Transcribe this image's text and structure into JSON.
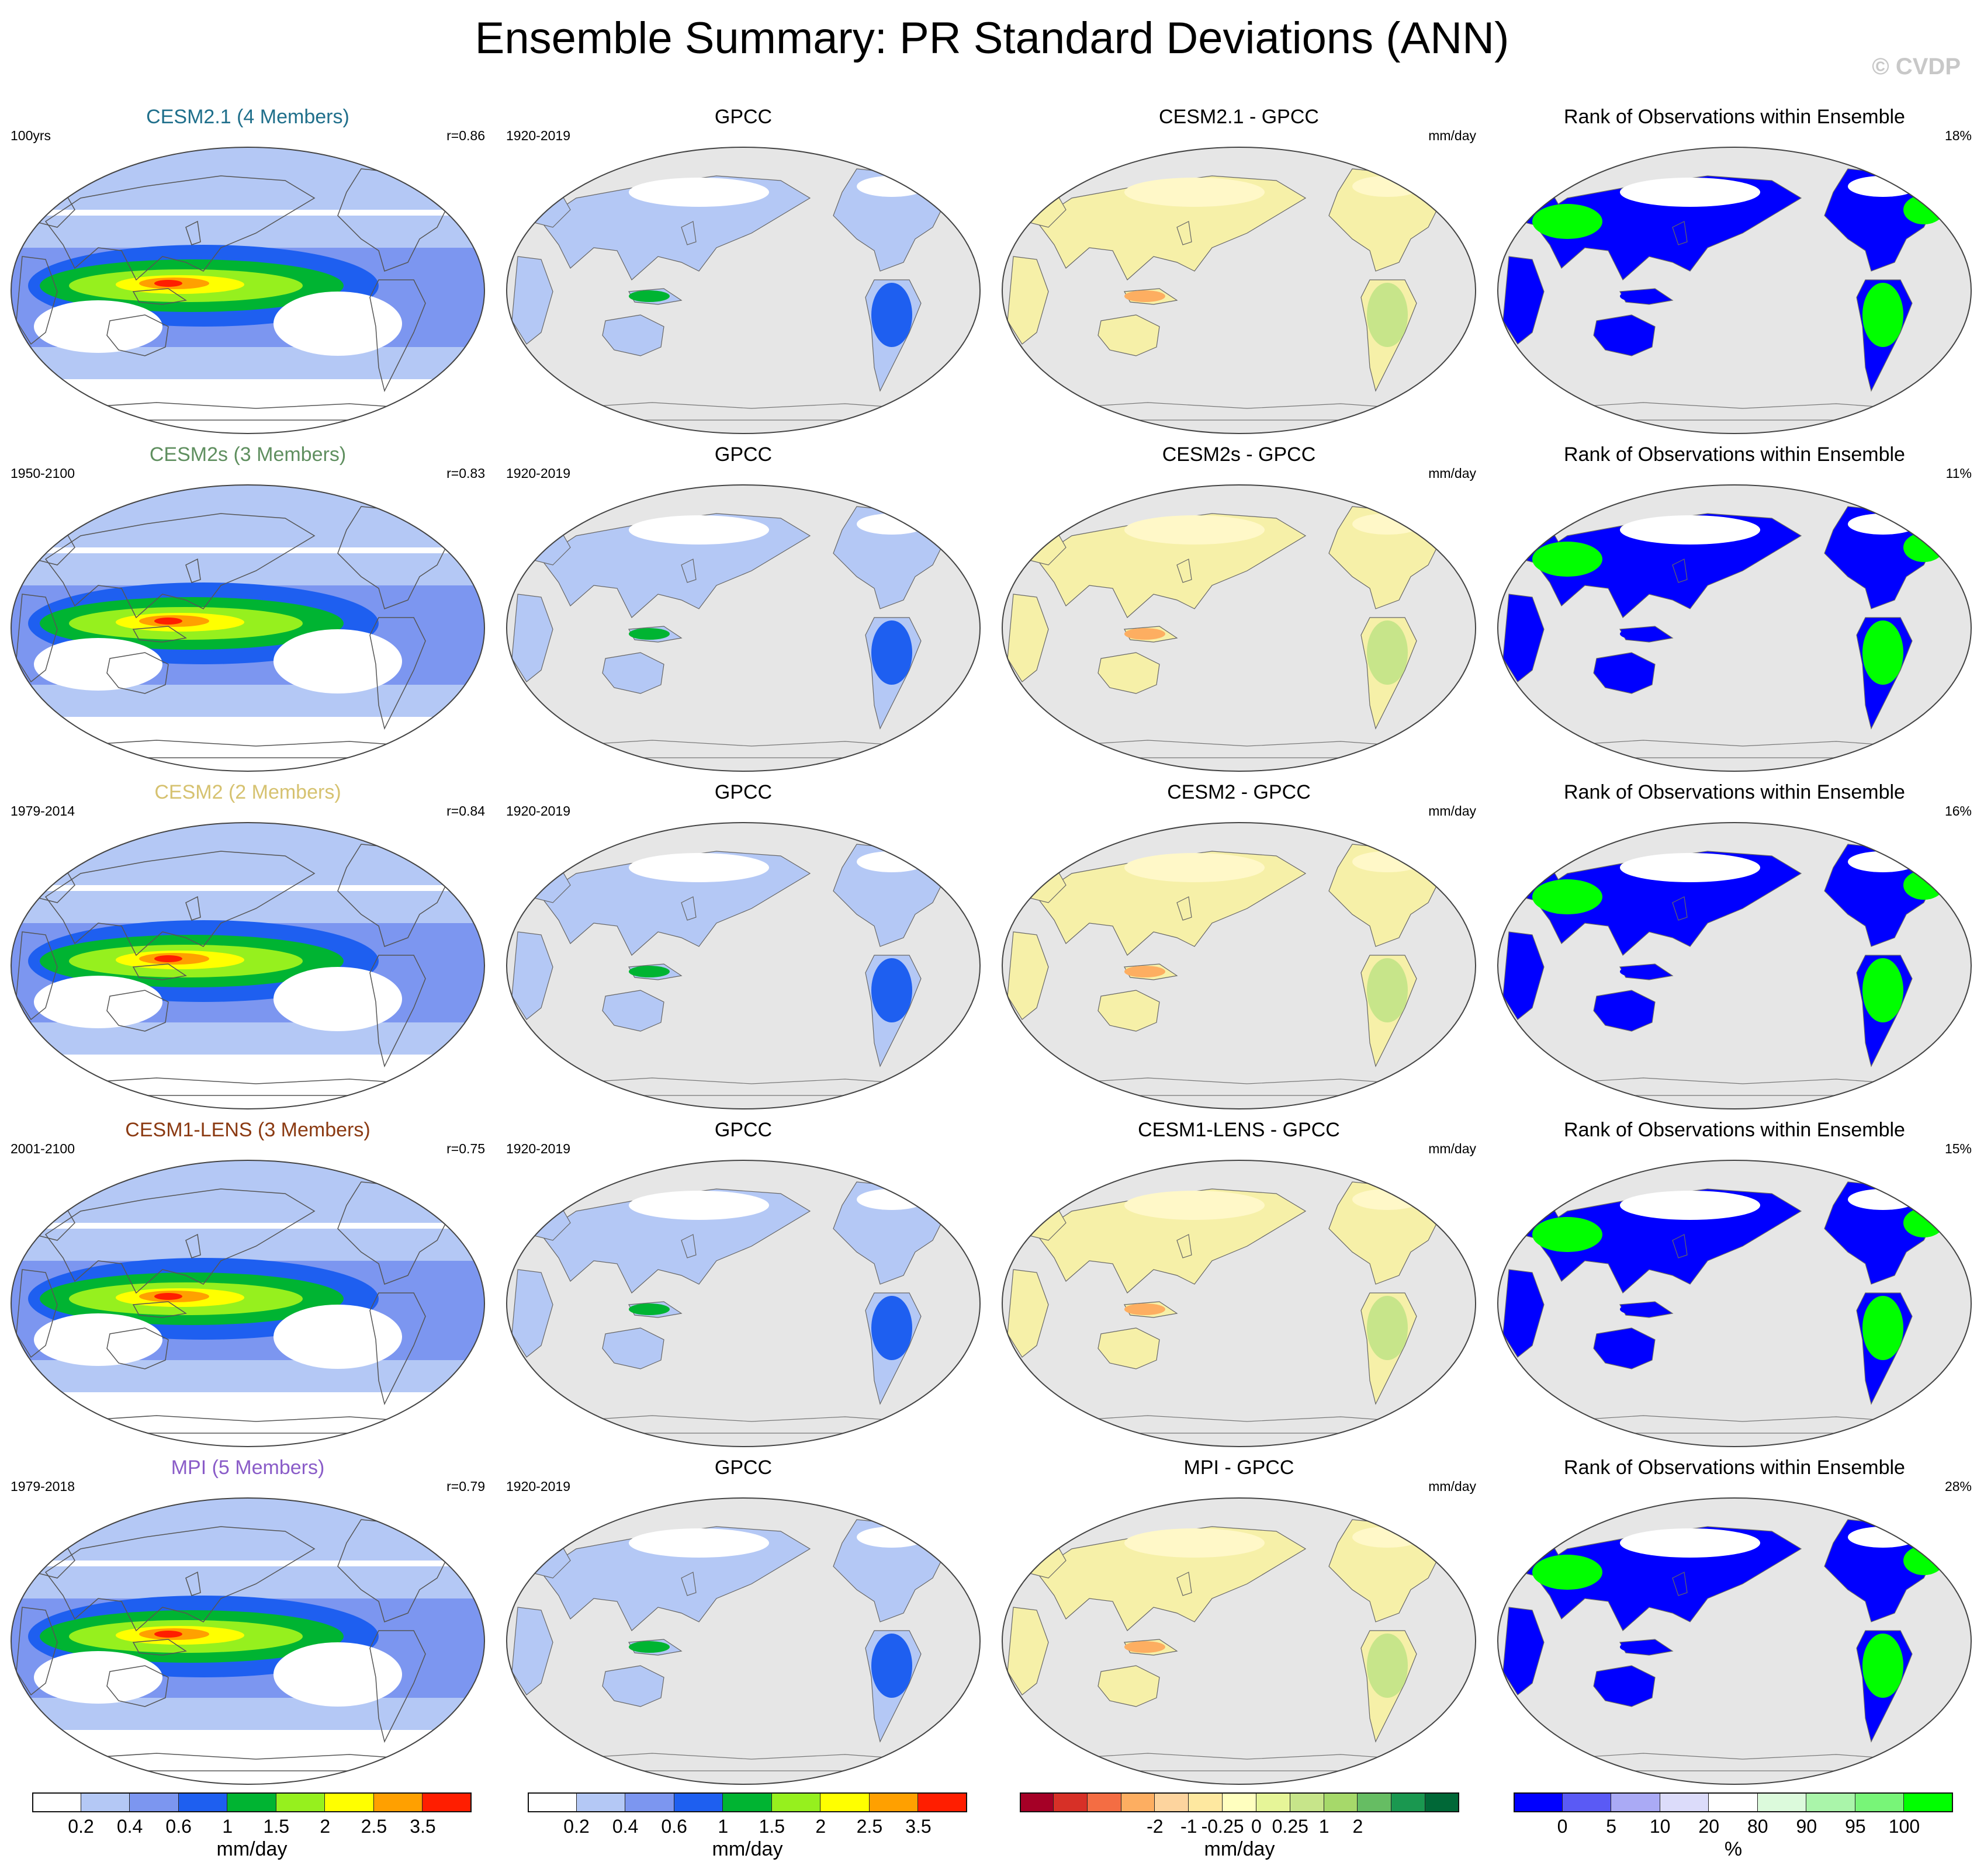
{
  "title": "Ensemble Summary: PR Standard Deviations (ANN)",
  "watermark": "© CVDP",
  "rows": [
    {
      "ens_title": "CESM2.1 (4 Members)",
      "ens_color": "#1f6f8b",
      "ens_years": "100yrs",
      "ens_r": "r=0.86",
      "obs_title": "GPCC",
      "obs_years": "1920-2019",
      "diff_title": "CESM2.1 - GPCC",
      "diff_unit": "mm/day",
      "rank_title": "Rank of Observations within Ensemble",
      "rank_pct": "18%"
    },
    {
      "ens_title": "CESM2s (3 Members)",
      "ens_color": "#5f8f5f",
      "ens_years": "1950-2100",
      "ens_r": "r=0.83",
      "obs_title": "GPCC",
      "obs_years": "1920-2019",
      "diff_title": "CESM2s - GPCC",
      "diff_unit": "mm/day",
      "rank_title": "Rank of Observations within Ensemble",
      "rank_pct": "11%"
    },
    {
      "ens_title": "CESM2 (2 Members)",
      "ens_color": "#d6c270",
      "ens_years": "1979-2014",
      "ens_r": "r=0.84",
      "obs_title": "GPCC",
      "obs_years": "1920-2019",
      "diff_title": "CESM2 - GPCC",
      "diff_unit": "mm/day",
      "rank_title": "Rank of Observations within Ensemble",
      "rank_pct": "16%"
    },
    {
      "ens_title": "CESM1-LENS (3 Members)",
      "ens_color": "#8b3a12",
      "ens_years": "2001-2100",
      "ens_r": "r=0.75",
      "obs_title": "GPCC",
      "obs_years": "1920-2019",
      "diff_title": "CESM1-LENS - GPCC",
      "diff_unit": "mm/day",
      "rank_title": "Rank of Observations within Ensemble",
      "rank_pct": "15%"
    },
    {
      "ens_title": "MPI (5 Members)",
      "ens_color": "#8a5cc8",
      "ens_years": "1979-2018",
      "ens_r": "r=0.79",
      "obs_title": "GPCC",
      "obs_years": "1920-2019",
      "diff_title": "MPI - GPCC",
      "diff_unit": "mm/day",
      "rank_title": "Rank of Observations within Ensemble",
      "rank_pct": "28%"
    }
  ],
  "colorbars": [
    {
      "unit": "mm/day",
      "colors": [
        "#ffffff",
        "#b4c8f5",
        "#7c96f0",
        "#1e5ff0",
        "#00b432",
        "#96f01e",
        "#ffff00",
        "#ffa000",
        "#ff1e00"
      ],
      "ticks": [
        "0.2",
        "0.4",
        "0.6",
        "1",
        "1.5",
        "2",
        "2.5",
        "3.5"
      ]
    },
    {
      "unit": "mm/day",
      "colors": [
        "#ffffff",
        "#b4c8f5",
        "#7c96f0",
        "#1e5ff0",
        "#00b432",
        "#96f01e",
        "#ffff00",
        "#ffa000",
        "#ff1e00"
      ],
      "ticks": [
        "0.2",
        "0.4",
        "0.6",
        "1",
        "1.5",
        "2",
        "2.5",
        "3.5"
      ]
    },
    {
      "unit": "mm/day",
      "colors": [
        "#a50026",
        "#d73027",
        "#f46d43",
        "#fdae61",
        "#fdd49e",
        "#fee8a0",
        "#ffffbf",
        "#e6f598",
        "#c7e58a",
        "#a6d96a",
        "#66bd63",
        "#1a9850",
        "#006837"
      ],
      "ticks": [
        "-2",
        "-1",
        "-0.25",
        "0",
        "0.25",
        "1",
        "2"
      ]
    },
    {
      "unit": "%",
      "colors": [
        "#0000ff",
        "#5a5af5",
        "#aaaaf5",
        "#dcdcfa",
        "#ffffff",
        "#dcfadc",
        "#aaf5aa",
        "#78f578",
        "#00ff00"
      ],
      "ticks": [
        "0",
        "5",
        "10",
        "20",
        "80",
        "90",
        "95",
        "100"
      ]
    }
  ]
}
